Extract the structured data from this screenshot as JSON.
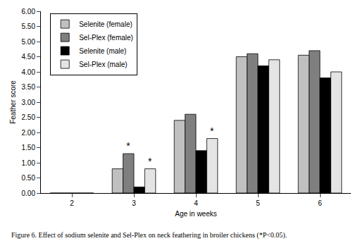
{
  "chart_data": {
    "type": "bar",
    "title": "Figure 6. Effect of sodium selenite and Sel-Plex on neck feathering in broiler chickens (*P<0.05).",
    "x_label": "Age in weeks",
    "y_label": "Feather score",
    "categories": [
      "2",
      "3",
      "4",
      "5",
      "6"
    ],
    "series": [
      {
        "name": "Selenite (female)",
        "color": "#c0c0c0",
        "values": [
          0,
          0.8,
          2.4,
          4.5,
          4.55
        ]
      },
      {
        "name": "Sel-Plex (female)",
        "color": "#7f7f7f",
        "values": [
          0,
          1.3,
          2.6,
          4.6,
          4.7
        ]
      },
      {
        "name": "Selenite (male)",
        "color": "#000000",
        "values": [
          0,
          0.2,
          1.4,
          4.2,
          3.8
        ]
      },
      {
        "name": "Sel-Plex (male)",
        "color": "#e4e4e4",
        "values": [
          0,
          0.8,
          1.8,
          4.4,
          4.0
        ]
      }
    ],
    "annotations": [
      {
        "text": "*",
        "category": "3",
        "series": "Sel-Plex (female)"
      },
      {
        "text": "*",
        "category": "3",
        "series": "Sel-Plex (male)"
      },
      {
        "text": "*",
        "category": "4",
        "series": "Sel-Plex (male)"
      }
    ],
    "ylim": [
      0,
      6
    ],
    "yticks": [
      {
        "value": 0,
        "label": "0.00"
      },
      {
        "value": 0.5,
        "label": "0.50"
      },
      {
        "value": 1,
        "label": "1.00"
      },
      {
        "value": 1.5,
        "label": "1.50"
      },
      {
        "value": 2,
        "label": "2.00"
      },
      {
        "value": 2.5,
        "label": "2.50"
      },
      {
        "value": 3,
        "label": "3.00"
      },
      {
        "value": 3.5,
        "label": "3.50"
      },
      {
        "value": 4,
        "label": "4.00"
      },
      {
        "value": 4.5,
        "label": "4.50"
      },
      {
        "value": 5,
        "label": "5.00"
      },
      {
        "value": 5.5,
        "label": "5.50"
      },
      {
        "value": 6,
        "label": "6.00"
      }
    ],
    "grid": false,
    "legend": "top left"
  }
}
